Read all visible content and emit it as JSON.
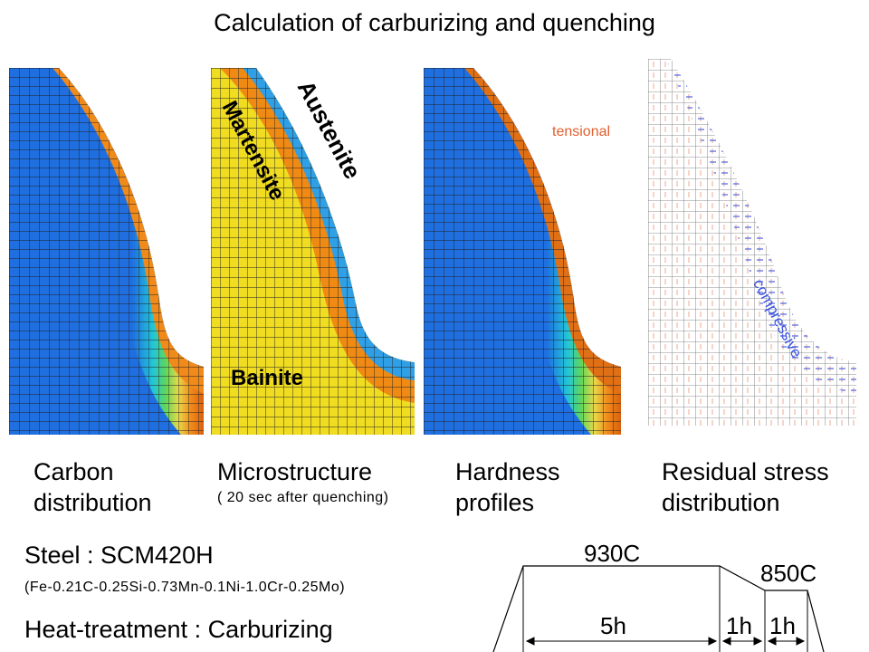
{
  "title": "Calculation of carburizing and quenching",
  "panels": [
    {
      "caption1": "Carbon",
      "caption2": "distribution"
    },
    {
      "caption1": "Microstructure",
      "caption2": "( 20 sec after quenching)",
      "labels": {
        "austenite": "Austenite",
        "martensite": "Martensite",
        "bainite": "Bainite"
      }
    },
    {
      "caption1": "Hardness",
      "caption2": "profiles"
    },
    {
      "caption1": "Residual stress",
      "caption2": "distribution",
      "labels": {
        "tensional": "tensional",
        "compressive": "compressive"
      }
    }
  ],
  "steel": {
    "name": "Steel : SCM420H",
    "composition": "(Fe-0.21C-0.25Si-0.73Mn-0.1Ni-1.0Cr-0.25Mo)",
    "treatment": "Heat-treatment : Carburizing"
  },
  "schedule": {
    "temp1": "930C",
    "temp2": "850C",
    "dur1": "5h",
    "dur2": "1h",
    "dur3": "1h"
  },
  "colors": {
    "core_blue": "#1f6fe0",
    "mid_cyan": "#22c6d8",
    "green": "#5fd65a",
    "yellow": "#e8d84a",
    "orange": "#f08a1a",
    "deep_orange": "#d96010",
    "micro_yellow": "#f0dc20",
    "micro_orange": "#ef8a14",
    "micro_blue": "#2f9fe6",
    "tension_red": "#e06030",
    "compress_blue": "#3a55e0"
  }
}
